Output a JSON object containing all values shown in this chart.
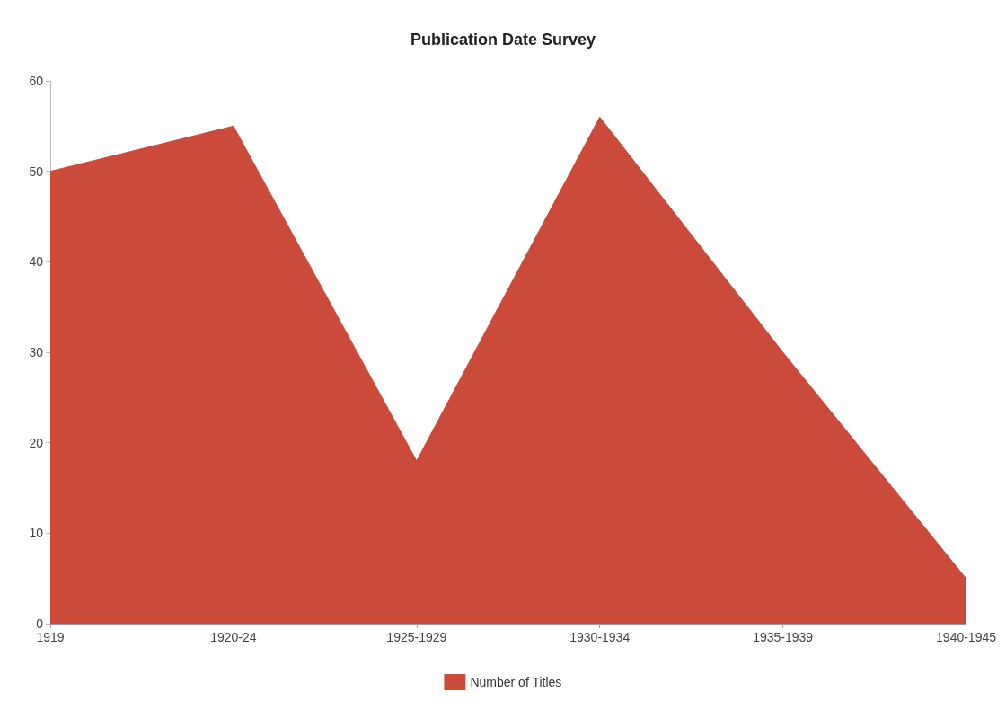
{
  "chart_data": {
    "type": "area",
    "title": "Publication Date Survey",
    "categories": [
      "1919",
      "1920-24",
      "1925-1929",
      "1930-1934",
      "1935-1939",
      "1940-1945"
    ],
    "series": [
      {
        "name": "Number of Titles",
        "color": "#cc4a3a",
        "values": [
          50,
          55,
          18,
          56,
          30,
          5
        ]
      }
    ],
    "ylim": [
      0,
      60
    ],
    "yticks": [
      0,
      10,
      20,
      30,
      40,
      50,
      60
    ],
    "grid": false,
    "legend": "bottom"
  }
}
